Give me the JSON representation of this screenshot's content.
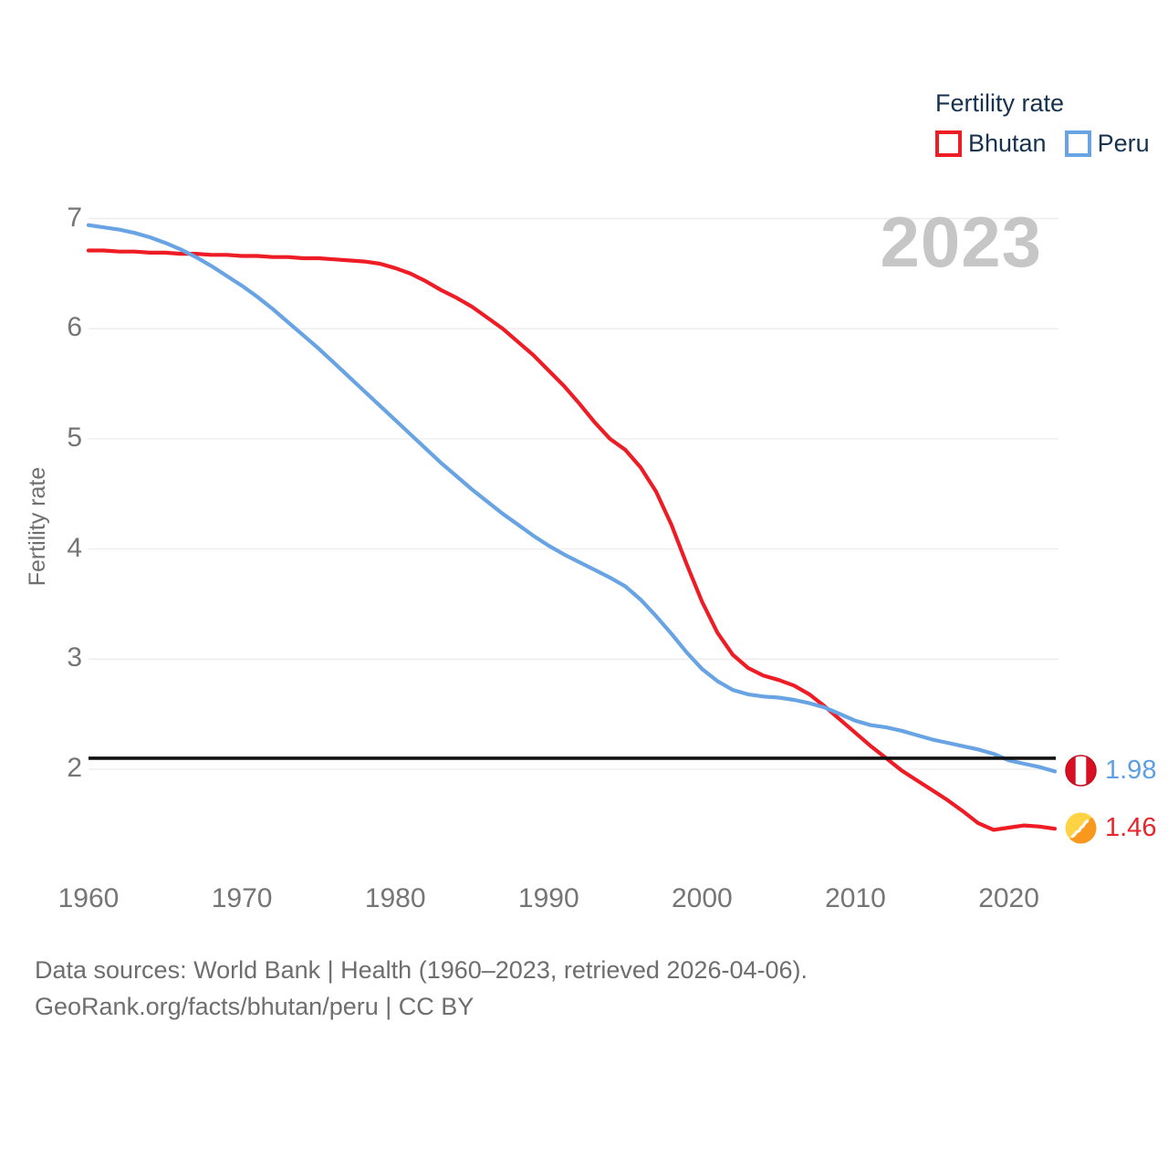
{
  "legend": {
    "title": "Fertility rate",
    "items": [
      {
        "label": "Bhutan",
        "color": "#ee1c24"
      },
      {
        "label": "Peru",
        "color": "#68a3e3"
      }
    ]
  },
  "watermark_year": "2023",
  "colors": {
    "bhutan_line": "#ee1c24",
    "peru_line": "#68a3e3",
    "replacement_line": "#111111",
    "grid": "#ededed",
    "axis_text": "#757575",
    "heading_text": "#16324f",
    "watermark": "#c6c6c6",
    "footer_text": "#6e6e6e",
    "peru_value_text": "#5d9fe2",
    "bhutan_value_text": "#e8242c"
  },
  "end_labels": {
    "peru": {
      "value": "1.98",
      "flag": "peru-flag"
    },
    "bhutan": {
      "value": "1.46",
      "flag": "bhutan-flag"
    }
  },
  "footer": {
    "line1": "Data sources: World Bank | Health (1960–2023, retrieved 2026-04-06).",
    "line2": "GeoRank.org/facts/bhutan/peru | CC BY"
  },
  "chart_data": {
    "type": "line",
    "title": "Fertility rate",
    "ylabel": "Fertility rate",
    "x_range": [
      1960,
      2023
    ],
    "y_ticks": [
      7,
      6,
      5,
      4,
      3,
      2
    ],
    "x_ticks": [
      1960,
      1970,
      1980,
      1990,
      2000,
      2010,
      2020
    ],
    "grid": "horizontal-only",
    "legend_position": "top-right",
    "replacement_level": 2.1,
    "x": [
      1960,
      1961,
      1962,
      1963,
      1964,
      1965,
      1966,
      1967,
      1968,
      1969,
      1970,
      1971,
      1972,
      1973,
      1974,
      1975,
      1976,
      1977,
      1978,
      1979,
      1980,
      1981,
      1982,
      1983,
      1984,
      1985,
      1986,
      1987,
      1988,
      1989,
      1990,
      1991,
      1992,
      1993,
      1994,
      1995,
      1996,
      1997,
      1998,
      1999,
      2000,
      2001,
      2002,
      2003,
      2004,
      2005,
      2006,
      2007,
      2008,
      2009,
      2010,
      2011,
      2012,
      2013,
      2014,
      2015,
      2016,
      2017,
      2018,
      2019,
      2020,
      2021,
      2022,
      2023
    ],
    "series": [
      {
        "name": "Bhutan",
        "color": "#ee1c24",
        "final_value": 1.46,
        "values": [
          6.71,
          6.71,
          6.7,
          6.7,
          6.69,
          6.69,
          6.68,
          6.68,
          6.67,
          6.67,
          6.66,
          6.66,
          6.65,
          6.65,
          6.64,
          6.64,
          6.63,
          6.62,
          6.61,
          6.59,
          6.55,
          6.5,
          6.43,
          6.35,
          6.28,
          6.2,
          6.1,
          6.0,
          5.88,
          5.76,
          5.62,
          5.48,
          5.32,
          5.15,
          5.0,
          4.9,
          4.74,
          4.52,
          4.22,
          3.86,
          3.52,
          3.24,
          3.04,
          2.92,
          2.85,
          2.81,
          2.76,
          2.68,
          2.57,
          2.45,
          2.33,
          2.21,
          2.1,
          1.99,
          1.9,
          1.81,
          1.72,
          1.62,
          1.51,
          1.45,
          1.47,
          1.49,
          1.48,
          1.46
        ]
      },
      {
        "name": "Peru",
        "color": "#68a3e3",
        "final_value": 1.98,
        "values": [
          6.94,
          6.92,
          6.9,
          6.87,
          6.83,
          6.78,
          6.72,
          6.65,
          6.57,
          6.48,
          6.39,
          6.29,
          6.18,
          6.06,
          5.94,
          5.82,
          5.69,
          5.56,
          5.43,
          5.3,
          5.17,
          5.04,
          4.91,
          4.78,
          4.66,
          4.54,
          4.43,
          4.32,
          4.22,
          4.12,
          4.03,
          3.95,
          3.88,
          3.81,
          3.74,
          3.66,
          3.54,
          3.39,
          3.23,
          3.06,
          2.91,
          2.8,
          2.72,
          2.68,
          2.66,
          2.65,
          2.63,
          2.6,
          2.56,
          2.5,
          2.44,
          2.4,
          2.38,
          2.35,
          2.31,
          2.27,
          2.24,
          2.21,
          2.18,
          2.14,
          2.08,
          2.05,
          2.02,
          1.98
        ]
      }
    ]
  }
}
